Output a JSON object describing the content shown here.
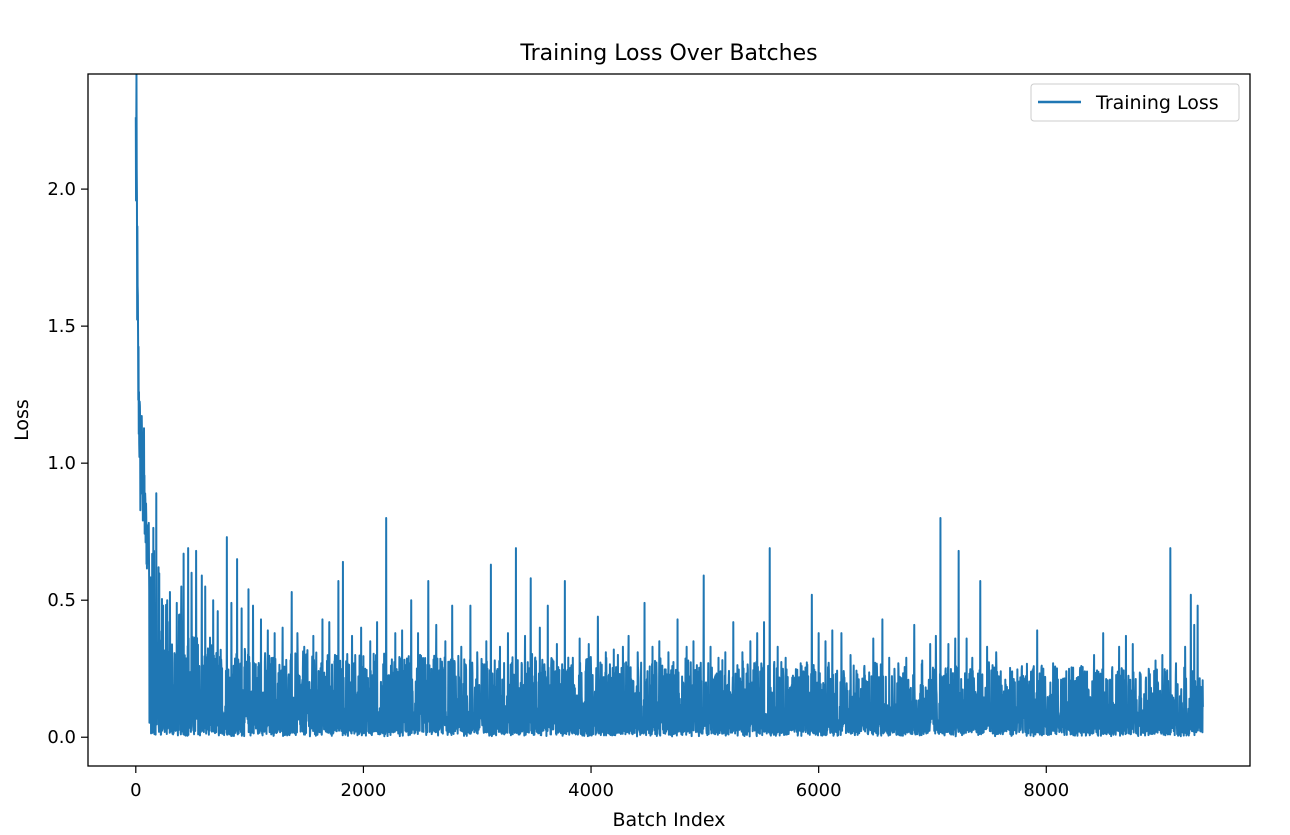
{
  "chart_data": {
    "type": "line",
    "title": "Training Loss Over Batches",
    "xlabel": "Batch Index",
    "ylabel": "Loss",
    "xlim": [
      -420,
      9790
    ],
    "ylim": [
      -0.105,
      2.42
    ],
    "xticks": [
      0,
      2000,
      4000,
      6000,
      8000
    ],
    "xtick_labels": [
      "0",
      "2000",
      "4000",
      "6000",
      "8000"
    ],
    "yticks": [
      0.0,
      0.5,
      1.0,
      1.5,
      2.0
    ],
    "ytick_labels": [
      "0.0",
      "0.5",
      "1.0",
      "1.5",
      "2.0"
    ],
    "grid": false,
    "legend_position": "top-right",
    "series": [
      {
        "name": "Training Loss",
        "color": "#1f77b4",
        "n_points": 9380,
        "initial_values": [
          [
            0,
            2.31
          ],
          [
            5,
            2.25
          ],
          [
            10,
            2.0
          ],
          [
            15,
            1.7
          ],
          [
            20,
            1.45
          ],
          [
            30,
            1.29
          ],
          [
            40,
            1.05
          ],
          [
            50,
            1.13
          ],
          [
            60,
            0.95
          ],
          [
            70,
            1.08
          ],
          [
            80,
            0.85
          ],
          [
            100,
            0.78
          ],
          [
            120,
            0.7
          ],
          [
            150,
            0.55
          ],
          [
            200,
            0.45
          ],
          [
            300,
            0.35
          ],
          [
            500,
            0.28
          ],
          [
            800,
            0.22
          ]
        ],
        "typical_low": 0.003,
        "spikes": [
          [
            160,
            0.68
          ],
          [
            180,
            0.89
          ],
          [
            200,
            0.62
          ],
          [
            240,
            0.48
          ],
          [
            300,
            0.53
          ],
          [
            360,
            0.49
          ],
          [
            400,
            0.55
          ],
          [
            420,
            0.67
          ],
          [
            460,
            0.69
          ],
          [
            490,
            0.6
          ],
          [
            530,
            0.68
          ],
          [
            580,
            0.59
          ],
          [
            610,
            0.55
          ],
          [
            680,
            0.5
          ],
          [
            720,
            0.46
          ],
          [
            800,
            0.73
          ],
          [
            840,
            0.49
          ],
          [
            890,
            0.65
          ],
          [
            930,
            0.47
          ],
          [
            990,
            0.54
          ],
          [
            1030,
            0.48
          ],
          [
            1100,
            0.43
          ],
          [
            1160,
            0.39
          ],
          [
            1220,
            0.38
          ],
          [
            1290,
            0.4
          ],
          [
            1370,
            0.53
          ],
          [
            1420,
            0.38
          ],
          [
            1480,
            0.33
          ],
          [
            1560,
            0.37
          ],
          [
            1640,
            0.43
          ],
          [
            1700,
            0.42
          ],
          [
            1780,
            0.57
          ],
          [
            1820,
            0.64
          ],
          [
            1900,
            0.37
          ],
          [
            1980,
            0.4
          ],
          [
            2060,
            0.35
          ],
          [
            2120,
            0.42
          ],
          [
            2200,
            0.8
          ],
          [
            2280,
            0.38
          ],
          [
            2340,
            0.39
          ],
          [
            2420,
            0.5
          ],
          [
            2480,
            0.38
          ],
          [
            2570,
            0.57
          ],
          [
            2640,
            0.41
          ],
          [
            2720,
            0.35
          ],
          [
            2780,
            0.48
          ],
          [
            2860,
            0.33
          ],
          [
            2940,
            0.48
          ],
          [
            3000,
            0.31
          ],
          [
            3080,
            0.35
          ],
          [
            3120,
            0.63
          ],
          [
            3200,
            0.33
          ],
          [
            3270,
            0.38
          ],
          [
            3340,
            0.69
          ],
          [
            3420,
            0.37
          ],
          [
            3470,
            0.58
          ],
          [
            3550,
            0.4
          ],
          [
            3620,
            0.48
          ],
          [
            3700,
            0.34
          ],
          [
            3770,
            0.57
          ],
          [
            3840,
            0.29
          ],
          [
            3900,
            0.36
          ],
          [
            3980,
            0.34
          ],
          [
            4060,
            0.44
          ],
          [
            4130,
            0.31
          ],
          [
            4200,
            0.32
          ],
          [
            4280,
            0.33
          ],
          [
            4330,
            0.37
          ],
          [
            4410,
            0.31
          ],
          [
            4470,
            0.49
          ],
          [
            4540,
            0.33
          ],
          [
            4600,
            0.35
          ],
          [
            4680,
            0.31
          ],
          [
            4760,
            0.43
          ],
          [
            4840,
            0.33
          ],
          [
            4900,
            0.35
          ],
          [
            4990,
            0.59
          ],
          [
            5050,
            0.33
          ],
          [
            5120,
            0.29
          ],
          [
            5180,
            0.31
          ],
          [
            5250,
            0.42
          ],
          [
            5330,
            0.31
          ],
          [
            5400,
            0.35
          ],
          [
            5460,
            0.38
          ],
          [
            5520,
            0.42
          ],
          [
            5570,
            0.69
          ],
          [
            5640,
            0.33
          ],
          [
            5710,
            0.29
          ],
          [
            5780,
            0.2
          ],
          [
            5850,
            0.26
          ],
          [
            5940,
            0.52
          ],
          [
            6000,
            0.38
          ],
          [
            6060,
            0.35
          ],
          [
            6120,
            0.39
          ],
          [
            6200,
            0.38
          ],
          [
            6280,
            0.3
          ],
          [
            6340,
            0.23
          ],
          [
            6400,
            0.25
          ],
          [
            6480,
            0.36
          ],
          [
            6560,
            0.43
          ],
          [
            6620,
            0.29
          ],
          [
            6700,
            0.27
          ],
          [
            6770,
            0.29
          ],
          [
            6840,
            0.41
          ],
          [
            6910,
            0.28
          ],
          [
            6980,
            0.34
          ],
          [
            7030,
            0.37
          ],
          [
            7070,
            0.8
          ],
          [
            7140,
            0.34
          ],
          [
            7200,
            0.36
          ],
          [
            7230,
            0.68
          ],
          [
            7300,
            0.36
          ],
          [
            7350,
            0.29
          ],
          [
            7420,
            0.57
          ],
          [
            7480,
            0.33
          ],
          [
            7560,
            0.31
          ],
          [
            7640,
            0.21
          ],
          [
            7700,
            0.24
          ],
          [
            7780,
            0.2
          ],
          [
            7860,
            0.16
          ],
          [
            7920,
            0.39
          ],
          [
            7990,
            0.22
          ],
          [
            8060,
            0.27
          ],
          [
            8130,
            0.21
          ],
          [
            8200,
            0.25
          ],
          [
            8280,
            0.22
          ],
          [
            8340,
            0.24
          ],
          [
            8420,
            0.3
          ],
          [
            8500,
            0.38
          ],
          [
            8560,
            0.21
          ],
          [
            8640,
            0.33
          ],
          [
            8700,
            0.37
          ],
          [
            8760,
            0.34
          ],
          [
            8830,
            0.22
          ],
          [
            8900,
            0.25
          ],
          [
            8960,
            0.28
          ],
          [
            9020,
            0.3
          ],
          [
            9090,
            0.69
          ],
          [
            9140,
            0.27
          ],
          [
            9220,
            0.33
          ],
          [
            9270,
            0.52
          ],
          [
            9300,
            0.41
          ],
          [
            9330,
            0.48
          ],
          [
            9360,
            0.16
          ]
        ]
      }
    ]
  }
}
